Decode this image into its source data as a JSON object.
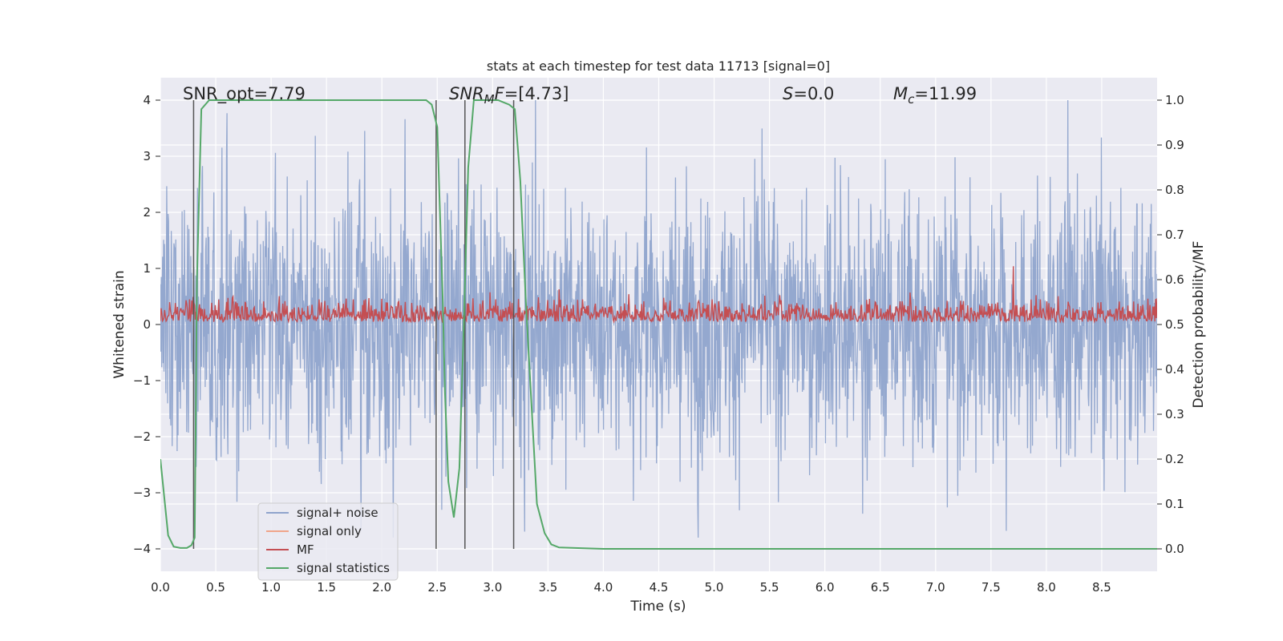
{
  "chart_data": {
    "type": "line",
    "title": "stats at each timestep for test data 11713 [signal=0]",
    "xlabel": "Time (s)",
    "ylabel": "Whitened strain",
    "y2label": "Detection probability/MF",
    "xlim": [
      0.0,
      9.0
    ],
    "ylim": [
      -4.4,
      4.4
    ],
    "y2lim": [
      -0.05,
      1.05
    ],
    "x_ticks": [
      0.0,
      0.5,
      1.0,
      1.5,
      2.0,
      2.5,
      3.0,
      3.5,
      4.0,
      4.5,
      5.0,
      5.5,
      6.0,
      6.5,
      7.0,
      7.5,
      8.0,
      8.5
    ],
    "x_tick_labels": [
      "0.0",
      "0.5",
      "1.0",
      "1.5",
      "2.0",
      "2.5",
      "3.0",
      "3.5",
      "4.0",
      "4.5",
      "5.0",
      "5.5",
      "6.0",
      "6.5",
      "7.0",
      "7.5",
      "8.0",
      "8.5"
    ],
    "y_ticks": [
      -4,
      -3,
      -2,
      -1,
      0,
      1,
      2,
      3,
      4
    ],
    "y_tick_labels": [
      "−4",
      "−3",
      "−2",
      "−1",
      "0",
      "1",
      "2",
      "3",
      "4"
    ],
    "y2_ticks": [
      0.0,
      0.1,
      0.2,
      0.3,
      0.4,
      0.5,
      0.6,
      0.7,
      0.8,
      0.9,
      1.0
    ],
    "y2_tick_labels": [
      "0.0",
      "0.1",
      "0.2",
      "0.3",
      "0.4",
      "0.5",
      "0.6",
      "0.7",
      "0.8",
      "0.9",
      "1.0"
    ],
    "annotations": {
      "snr_opt": "SNR_opt=7.79",
      "snr_mf_var": "SNR",
      "snr_mf_sub": "M",
      "snr_mf_rest": "F",
      "snr_mf_value": "=[4.73]",
      "s_var": "S",
      "s_value": "=0.0",
      "mc_var": "M",
      "mc_sub": "c",
      "mc_value": "=11.99"
    },
    "vertical_lines_x": [
      0.3,
      2.49,
      2.75,
      3.19
    ],
    "noise_envelope": {
      "min": -3.8,
      "max": 4.0,
      "typical_amplitude": 2.2
    },
    "mf_envelope": {
      "min": 0.5,
      "max": 0.6,
      "peak_x": 7.7,
      "peak_y": 0.63
    },
    "series": [
      {
        "name": "signal+ noise",
        "color": "#8fa4cc",
        "axis": "left"
      },
      {
        "name": "signal only",
        "color": "#f0a58a",
        "axis": "left"
      },
      {
        "name": "MF",
        "color": "#c44e52",
        "axis": "right"
      },
      {
        "name": "signal statistics",
        "color": "#55a868",
        "axis": "right",
        "x": [
          0.0,
          0.07,
          0.12,
          0.18,
          0.24,
          0.28,
          0.31,
          0.33,
          0.37,
          0.44,
          0.5,
          1.0,
          2.0,
          2.4,
          2.45,
          2.5,
          2.55,
          2.57,
          2.6,
          2.65,
          2.7,
          2.74,
          2.78,
          2.83,
          2.9,
          3.05,
          3.15,
          3.2,
          3.25,
          3.3,
          3.4,
          3.47,
          3.53,
          3.6,
          4.0,
          5.0,
          6.0,
          7.0,
          8.0,
          9.0
        ],
        "values": [
          0.2,
          0.03,
          0.005,
          0.002,
          0.002,
          0.008,
          0.025,
          0.6,
          0.98,
          1.0,
          1.0,
          1.0,
          1.0,
          1.0,
          0.99,
          0.94,
          0.55,
          0.35,
          0.15,
          0.07,
          0.18,
          0.5,
          0.85,
          1.0,
          1.0,
          1.0,
          0.99,
          0.98,
          0.82,
          0.55,
          0.1,
          0.035,
          0.01,
          0.003,
          0.0,
          0.0,
          0.0,
          0.0,
          0.0,
          0.0
        ]
      }
    ],
    "legend_position": "lower-left"
  }
}
